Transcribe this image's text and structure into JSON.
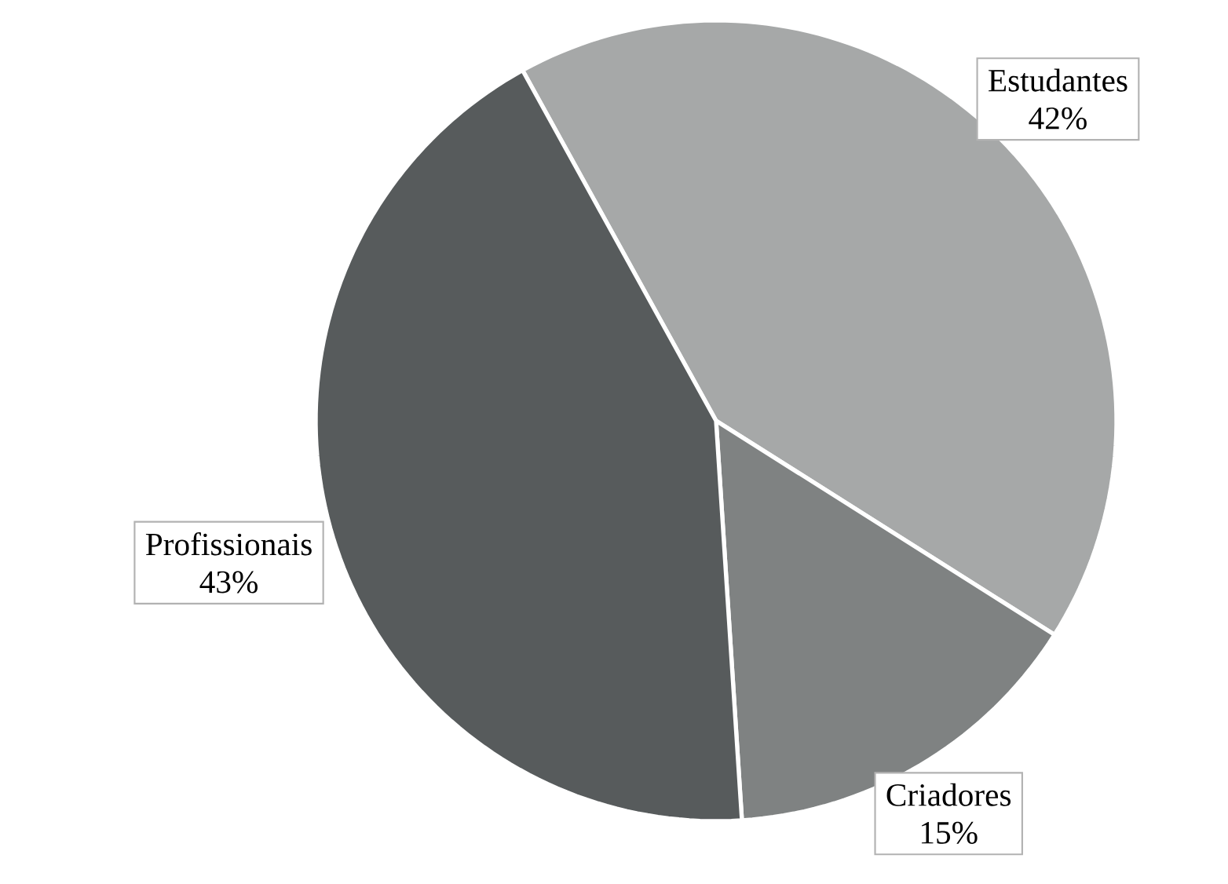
{
  "chart_data": {
    "type": "pie",
    "categories": [
      "Estudantes",
      "Criadores",
      "Profissionais"
    ],
    "values": [
      42,
      15,
      43
    ],
    "value_labels": [
      "42%",
      "15%",
      "43%"
    ],
    "colors": [
      "#a6a8a8",
      "#7f8282",
      "#575b5c"
    ]
  }
}
